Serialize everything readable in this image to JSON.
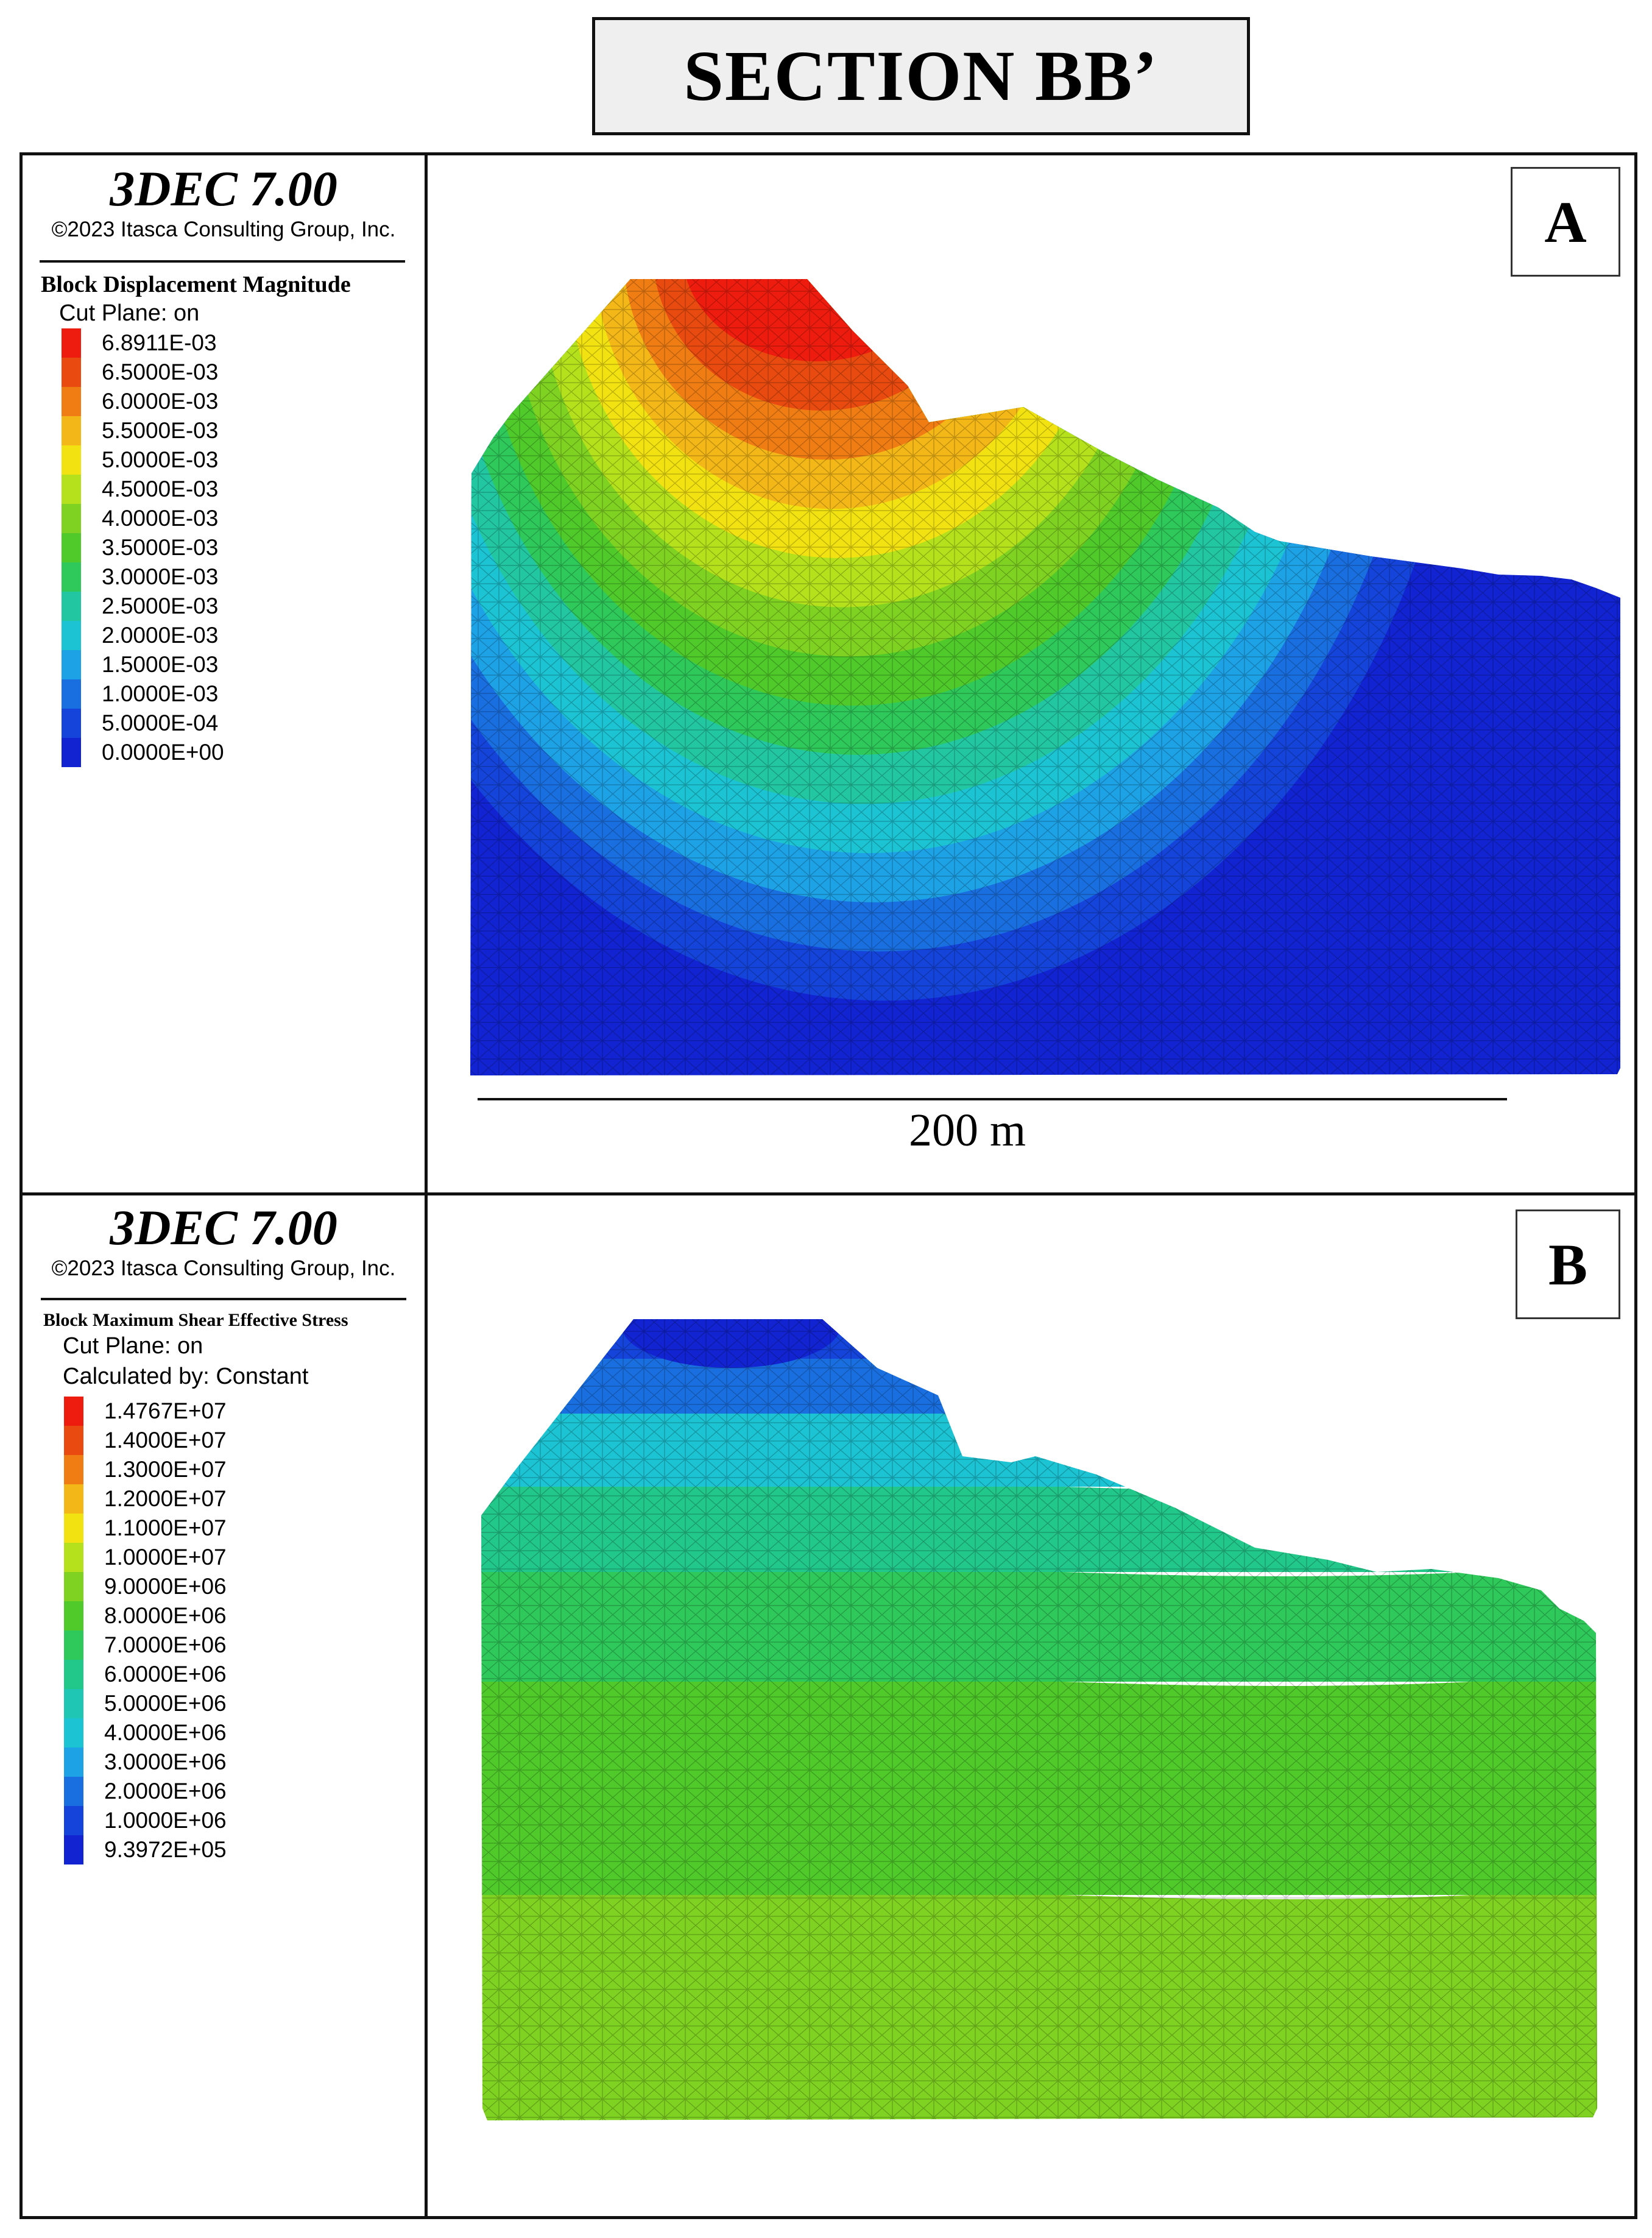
{
  "title": "SECTION BB’",
  "panels": [
    {
      "label": "A",
      "software": "3DEC 7.00",
      "copyright": "©2023 Itasca Consulting Group, Inc.",
      "quantity": "Block  Displacement Magnitude",
      "lines": [
        "Cut Plane: on"
      ],
      "legend": [
        {
          "label": "6.8911E-03",
          "color": "#ee1c0e"
        },
        {
          "label": "6.5000E-03",
          "color": "#e84a10"
        },
        {
          "label": "6.0000E-03",
          "color": "#f07d14"
        },
        {
          "label": "5.5000E-03",
          "color": "#f4b718"
        },
        {
          "label": "5.0000E-03",
          "color": "#f2e212"
        },
        {
          "label": "4.5000E-03",
          "color": "#b4e01c"
        },
        {
          "label": "4.0000E-03",
          "color": "#7fd221"
        },
        {
          "label": "3.5000E-03",
          "color": "#4fca2a"
        },
        {
          "label": "3.0000E-03",
          "color": "#2ec95a"
        },
        {
          "label": "2.5000E-03",
          "color": "#22c7a2"
        },
        {
          "label": "2.0000E-03",
          "color": "#1cc3d2"
        },
        {
          "label": "1.5000E-03",
          "color": "#1ea2e6"
        },
        {
          "label": "1.0000E-03",
          "color": "#1a6fe0"
        },
        {
          "label": "5.0000E-04",
          "color": "#1544da"
        },
        {
          "label": "0.0000E+00",
          "color": "#1224d2"
        }
      ],
      "scale_bar": "200 m"
    },
    {
      "label": "B",
      "software": "3DEC 7.00",
      "copyright": "©2023 Itasca Consulting Group, Inc.",
      "quantity": "Block  Maximum Shear Effective Stress",
      "lines": [
        "Cut Plane: on",
        "Calculated by: Constant"
      ],
      "legend": [
        {
          "label": "1.4767E+07",
          "color": "#ee1c0e"
        },
        {
          "label": "1.4000E+07",
          "color": "#e84a10"
        },
        {
          "label": "1.3000E+07",
          "color": "#f07d14"
        },
        {
          "label": "1.2000E+07",
          "color": "#f4b718"
        },
        {
          "label": "1.1000E+07",
          "color": "#f2e212"
        },
        {
          "label": "1.0000E+07",
          "color": "#b4e01c"
        },
        {
          "label": "9.0000E+06",
          "color": "#7fd221"
        },
        {
          "label": "8.0000E+06",
          "color": "#4fca2a"
        },
        {
          "label": "7.0000E+06",
          "color": "#2ec95a"
        },
        {
          "label": "6.0000E+06",
          "color": "#22c78a"
        },
        {
          "label": "5.0000E+06",
          "color": "#20c6b4"
        },
        {
          "label": "4.0000E+06",
          "color": "#1cc3d2"
        },
        {
          "label": "3.0000E+06",
          "color": "#1ea2e6"
        },
        {
          "label": "2.0000E+06",
          "color": "#1a6fe0"
        },
        {
          "label": "1.0000E+06",
          "color": "#1544da"
        },
        {
          "label": "9.3972E+05",
          "color": "#1224d2"
        }
      ]
    }
  ]
}
